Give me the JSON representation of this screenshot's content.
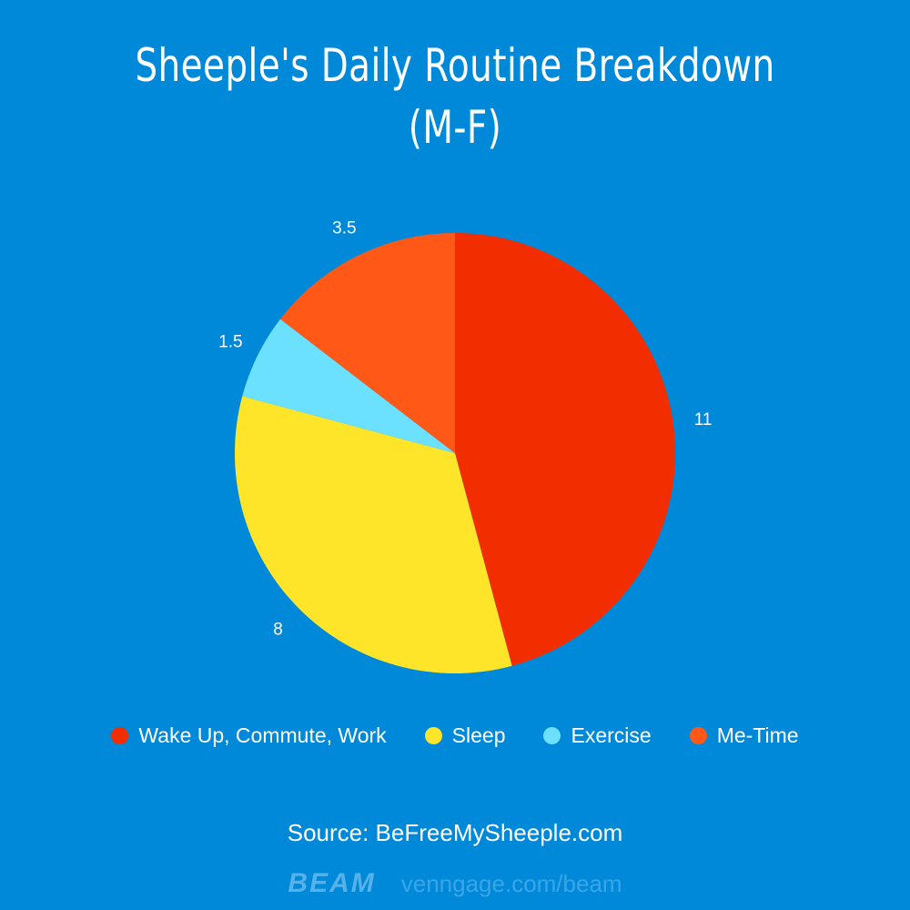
{
  "title_lines": [
    "Sheeple's Daily Routine Breakdown",
    "(M-F)"
  ],
  "chart_data": {
    "type": "pie",
    "title": "Sheeple's Daily Routine Breakdown (M-F)",
    "slices": [
      {
        "label": "Wake Up, Commute, Work",
        "value": 11,
        "value_label": "11",
        "color": "#f22d00"
      },
      {
        "label": "Sleep",
        "value": 8,
        "value_label": "8",
        "color": "#ffe52a"
      },
      {
        "label": "Exercise",
        "value": 1.5,
        "value_label": "1.5",
        "color": "#6ce1ff"
      },
      {
        "label": "Me-Time",
        "value": 3.5,
        "value_label": "3.5",
        "color": "#ff5817"
      }
    ],
    "legend_position": "bottom"
  },
  "source": "Source: BeFreeMySheeple.com",
  "footer": {
    "logo": "BEAM",
    "link": "venngage.com/beam"
  }
}
